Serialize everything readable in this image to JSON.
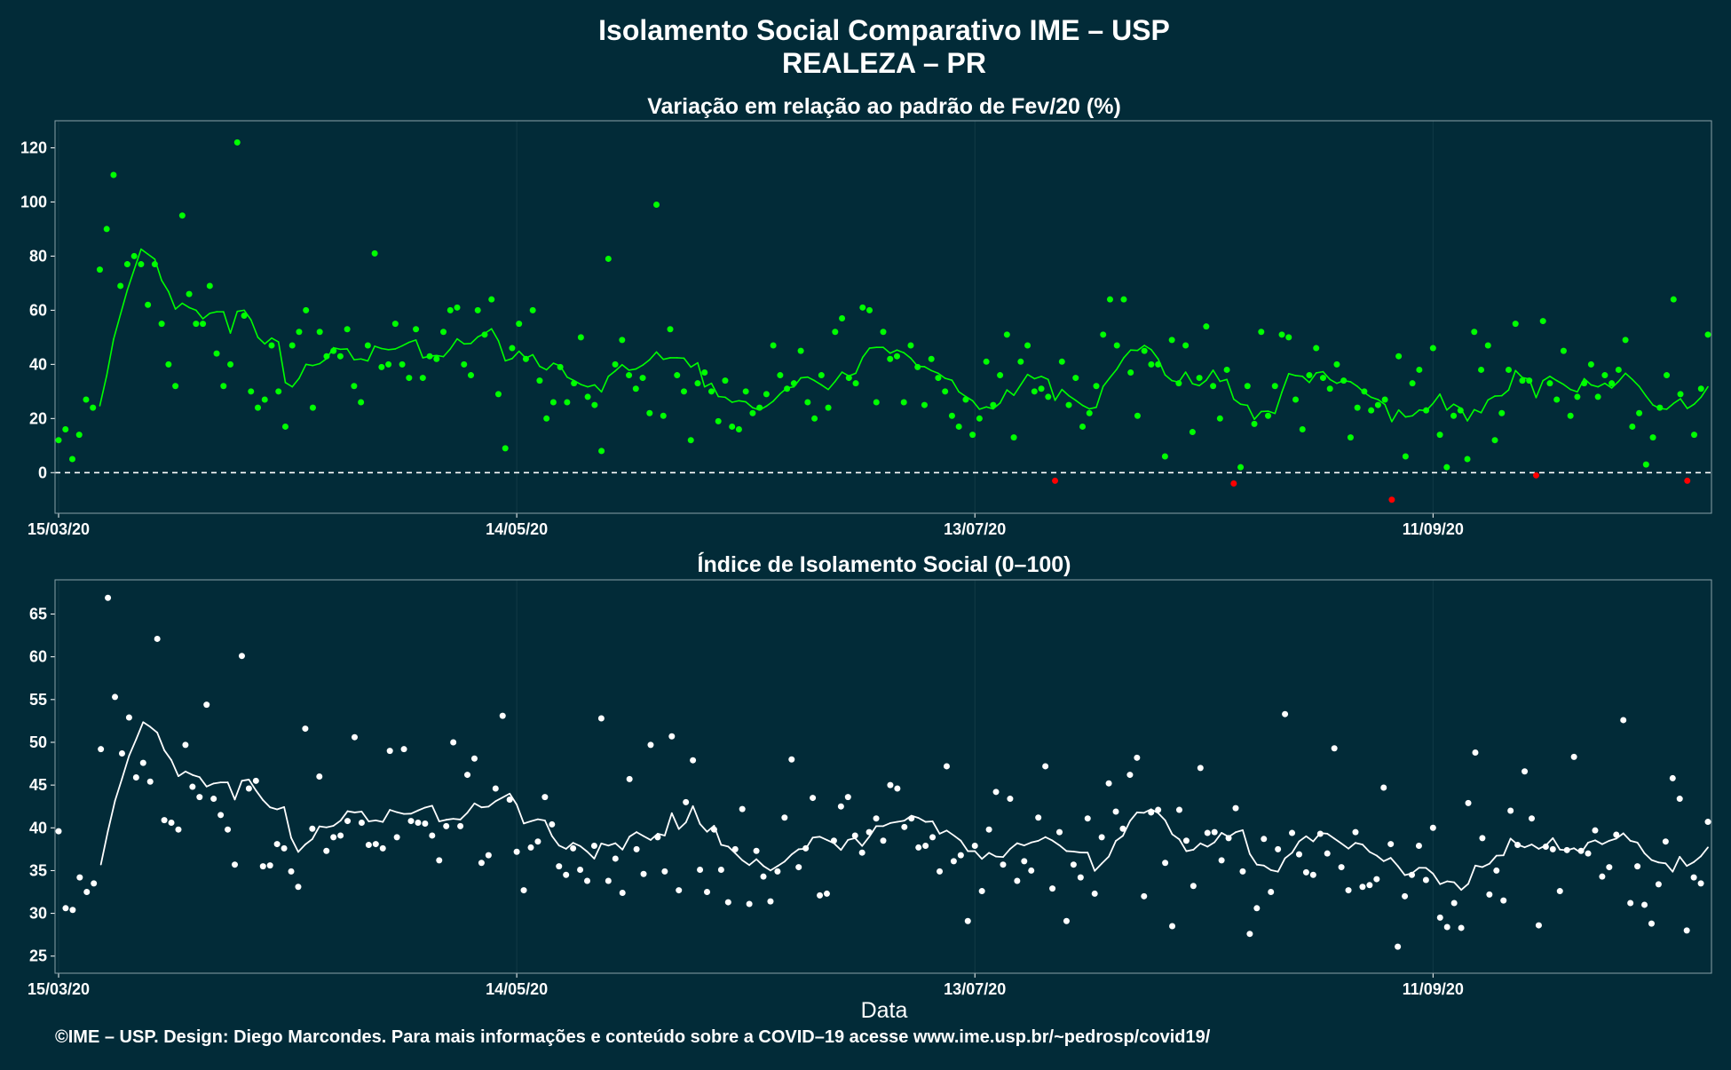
{
  "title": "Isolamento Social Comparativo IME – USP",
  "subtitle": "REALEZA – PR",
  "footer": "©IME – USP. Design: Diego Marcondes. Para mais informações e conteúdo sobre a COVID–19 acesse www.ime.usp.br/~pedrosp/covid19/",
  "colors": {
    "background": "#022b38",
    "positive": "#00ff00",
    "negative": "#ff0000",
    "index_series": "#ffffff",
    "panel_border": "#8aa0a8"
  },
  "chart_data": [
    {
      "type": "scatter",
      "title": "Variação em relação ao padrão de Fev/20 (%)",
      "xlabel": "",
      "ylabel": "",
      "x_start": "15/03/20",
      "x_end": "17/10/20",
      "x_ticks": [
        "15/03/20",
        "14/05/20",
        "13/07/20",
        "11/09/20"
      ],
      "ylim": [
        -15,
        130
      ],
      "y_ticks": [
        0,
        20,
        40,
        60,
        80,
        100,
        120
      ],
      "reference_line": 0,
      "series": [
        {
          "values": [
            12,
            16,
            5,
            14,
            27,
            24,
            75,
            90,
            110,
            69,
            77,
            80,
            77,
            62,
            77,
            55,
            40,
            32,
            95,
            66,
            55,
            55,
            69,
            44,
            32,
            40,
            122,
            58,
            30,
            24,
            27,
            47,
            30,
            17,
            47,
            52,
            60,
            24,
            52,
            43,
            45,
            43,
            53,
            32,
            26,
            47,
            81,
            39,
            40,
            55,
            40,
            35,
            53,
            35,
            43,
            42,
            52,
            60,
            61,
            40,
            36,
            60,
            51,
            64,
            29,
            9,
            46,
            55,
            42,
            60,
            34,
            20,
            26,
            39,
            26,
            33,
            50,
            28,
            25,
            8,
            79,
            40,
            49,
            36,
            31,
            35,
            22,
            99,
            21,
            53,
            36,
            30,
            12,
            33,
            37,
            30,
            19,
            34,
            17,
            16,
            30,
            22,
            24,
            29,
            47,
            36,
            31,
            33,
            45,
            26,
            20,
            36,
            24,
            52,
            57,
            35,
            33,
            61,
            60,
            26,
            52,
            42,
            43,
            26,
            47,
            39,
            25,
            42,
            35,
            30,
            21,
            17,
            27,
            14,
            20,
            41,
            25,
            36,
            51,
            13,
            41,
            47,
            30,
            31,
            28,
            -3,
            41,
            25,
            35,
            17,
            22,
            32,
            51,
            64,
            47,
            64,
            37,
            21,
            45,
            40,
            40,
            6,
            49,
            33,
            47,
            15,
            35,
            54,
            32,
            20,
            38,
            -4,
            2,
            32,
            18,
            52,
            21,
            32,
            51,
            50,
            27,
            16,
            36,
            46,
            35,
            31,
            40,
            34,
            13,
            24,
            30,
            23,
            25,
            27,
            -10,
            43,
            6,
            33,
            38,
            23,
            46,
            14,
            2,
            21,
            23,
            5,
            52,
            38,
            47,
            12,
            22,
            38,
            55,
            34,
            34,
            -1,
            56,
            33,
            27,
            45,
            21,
            28,
            33,
            40,
            28,
            36,
            33,
            38,
            49,
            17,
            22,
            3,
            13,
            24,
            36,
            64,
            29,
            -3,
            14,
            31,
            51
          ]
        }
      ],
      "trend_line": true
    },
    {
      "type": "scatter",
      "title": "Índice de Isolamento Social (0–100)",
      "xlabel": "Data",
      "ylabel": "",
      "x_start": "15/03/20",
      "x_end": "17/10/20",
      "x_ticks": [
        "15/03/20",
        "14/05/20",
        "13/07/20",
        "11/09/20"
      ],
      "ylim": [
        23,
        69
      ],
      "y_ticks": [
        25,
        30,
        35,
        40,
        45,
        50,
        55,
        60,
        65
      ],
      "series": [
        {
          "values": [
            39.6,
            30.6,
            30.4,
            34.2,
            32.5,
            33.5,
            49.2,
            66.9,
            55.3,
            48.7,
            52.9,
            45.9,
            47.6,
            45.4,
            62.1,
            40.9,
            40.6,
            39.8,
            49.7,
            44.8,
            43.6,
            54.4,
            43.4,
            41.5,
            39.8,
            35.7,
            60.1,
            44.6,
            45.5,
            35.5,
            35.6,
            38.1,
            37.6,
            34.9,
            33.1,
            51.6,
            39.9,
            46.0,
            37.3,
            38.9,
            39.1,
            40.8,
            50.6,
            40.6,
            38.0,
            38.1,
            37.6,
            49.0,
            38.9,
            49.2,
            40.8,
            40.6,
            40.5,
            39.1,
            36.2,
            40.2,
            50.0,
            40.2,
            46.2,
            48.1,
            35.9,
            36.8,
            44.6,
            53.1,
            43.3,
            37.2,
            32.7,
            37.7,
            38.4,
            43.6,
            40.4,
            35.5,
            34.5,
            37.6,
            35.1,
            33.8,
            37.9,
            52.8,
            33.8,
            36.4,
            32.4,
            45.7,
            37.5,
            34.6,
            49.7,
            38.9,
            34.9,
            50.7,
            32.7,
            43.0,
            47.9,
            35.1,
            32.5,
            39.8,
            35.1,
            31.3,
            37.5,
            42.2,
            31.1,
            37.3,
            34.3,
            31.4,
            34.9,
            41.2,
            48.0,
            35.4,
            37.6,
            43.5,
            32.1,
            32.3,
            38.5,
            42.5,
            43.6,
            39.1,
            37.1,
            39.5,
            41.1,
            38.5,
            45.0,
            44.6,
            40.1,
            41.1,
            37.7,
            37.9,
            38.9,
            34.9,
            47.2,
            36.1,
            36.8,
            29.1,
            37.9,
            32.6,
            39.8,
            44.2,
            35.7,
            43.4,
            33.8,
            36.1,
            35.0,
            41.2,
            47.2,
            32.9,
            39.5,
            29.1,
            35.7,
            34.2,
            41.1,
            32.3,
            38.9,
            45.2,
            41.9,
            39.9,
            46.2,
            48.2,
            32.0,
            41.8,
            42.1,
            35.9,
            28.5,
            42.1,
            38.5,
            33.2,
            47.0,
            39.4,
            39.5,
            36.2,
            38.8,
            42.3,
            34.9,
            27.6,
            30.6,
            38.7,
            32.5,
            37.5,
            53.3,
            39.4,
            36.9,
            34.8,
            34.5,
            39.3,
            37.0,
            49.3,
            35.4,
            32.7,
            39.5,
            33.1,
            33.3,
            34.0,
            44.7,
            38.1,
            26.1,
            32.0,
            34.5,
            37.9,
            33.9,
            40.0,
            29.5,
            28.4,
            31.2,
            28.3,
            42.9,
            48.8,
            38.8,
            32.2,
            35.0,
            31.5,
            42.0,
            38.0,
            46.6,
            41.1,
            28.6,
            37.8,
            37.5,
            32.6,
            37.4,
            48.3,
            37.3,
            37.0,
            39.7,
            34.3,
            35.4,
            39.2,
            52.6,
            31.2,
            35.5,
            31.0,
            28.8,
            33.4,
            38.4,
            45.8,
            43.4,
            28.0,
            34.2,
            33.5,
            40.7
          ]
        }
      ],
      "trend_line": true
    }
  ]
}
